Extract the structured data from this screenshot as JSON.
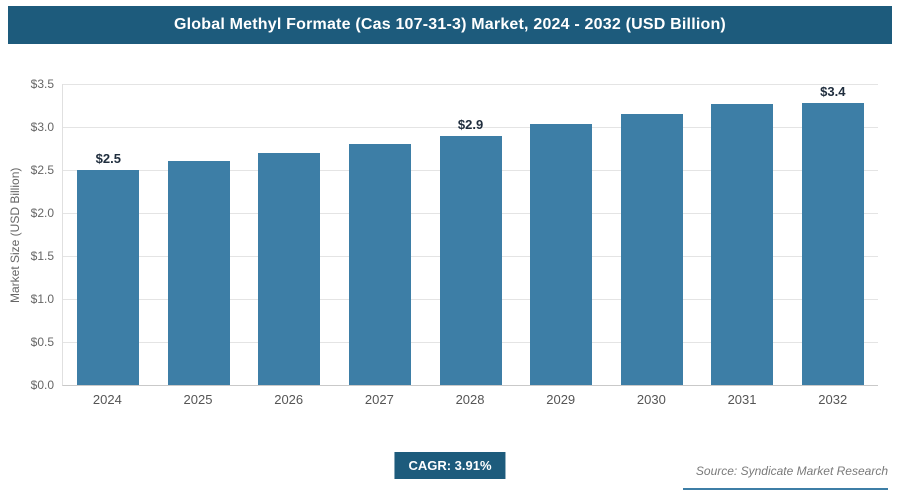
{
  "header": {
    "title": "Global Methyl Formate (Cas 107-31-3) Market, 2024 - 2032 (USD Billion)"
  },
  "chart_data": {
    "type": "bar",
    "title": "Global Methyl Formate (Cas 107-31-3) Market, 2024 - 2032 (USD Billion)",
    "categories": [
      "2024",
      "2025",
      "2026",
      "2027",
      "2028",
      "2029",
      "2030",
      "2031",
      "2032"
    ],
    "values": [
      2.5,
      2.6,
      2.7,
      2.8,
      2.9,
      3.03,
      3.15,
      3.27,
      3.4
    ],
    "value_labels": {
      "2024": "$2.5",
      "2028": "$2.9",
      "2032": "$3.4"
    },
    "xlabel": "",
    "ylabel": "Market Size (USD Billion)",
    "ylim": [
      0,
      3.5
    ],
    "ytick_step": 0.5,
    "ytick_labels": [
      "$0.0",
      "$0.5",
      "$1.0",
      "$1.5",
      "$2.0",
      "$2.5",
      "$3.0",
      "$3.5"
    ],
    "grid": true,
    "legend": false,
    "bar_color": "#3d7ea6"
  },
  "footer": {
    "cagr_label": "CAGR: 3.91%",
    "source": "Source: Syndicate Market Research"
  },
  "colors": {
    "header_bg": "#1d5b7c",
    "header_text": "#ffffff",
    "bar": "#3d7ea6",
    "gridline": "#e4e4e4",
    "axis_text": "#666666",
    "value_label": "#1f2d3d",
    "badge_bg": "#1d5b7c",
    "source_text": "#7a7a7a",
    "source_line": "#3d7ea6"
  }
}
